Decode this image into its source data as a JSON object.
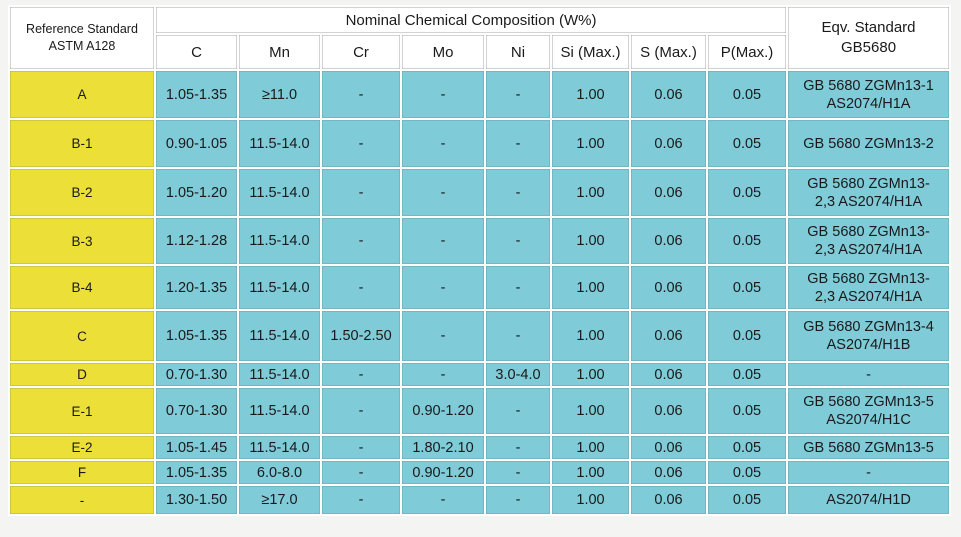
{
  "header": {
    "reference_line1": "Reference Standard",
    "reference_line2": "ASTM A128",
    "nominal": "Nominal Chemical Composition (W%)",
    "eqv_line1": "Eqv. Standard",
    "eqv_line2": "GB5680"
  },
  "columns": [
    "C",
    "Mn",
    "Cr",
    "Mo",
    "Ni",
    "Si (Max.)",
    "S (Max.)",
    "P(Max.)"
  ],
  "rows": [
    {
      "grade": "A",
      "c": "1.05-1.35",
      "mn": "≥11.0",
      "cr": "-",
      "mo": "-",
      "ni": "-",
      "si": "1.00",
      "s": "0.06",
      "p": "0.05",
      "eqv1": "GB 5680  ZGMn13-1",
      "eqv2": "AS2074/H1A"
    },
    {
      "grade": "B-1",
      "c": "0.90-1.05",
      "mn": "11.5-14.0",
      "cr": "-",
      "mo": "-",
      "ni": "-",
      "si": "1.00",
      "s": "0.06",
      "p": "0.05",
      "eqv1": "GB 5680 ZGMn13-2",
      "eqv2": ""
    },
    {
      "grade": "B-2",
      "c": "1.05-1.20",
      "mn": "11.5-14.0",
      "cr": "-",
      "mo": "-",
      "ni": "-",
      "si": "1.00",
      "s": "0.06",
      "p": "0.05",
      "eqv1": "GB 5680  ZGMn13-",
      "eqv2": "2,3 AS2074/H1A"
    },
    {
      "grade": "B-3",
      "c": "1.12-1.28",
      "mn": "11.5-14.0",
      "cr": "-",
      "mo": "-",
      "ni": "-",
      "si": "1.00",
      "s": "0.06",
      "p": "0.05",
      "eqv1": "GB 5680  ZGMn13-",
      "eqv2": "2,3 AS2074/H1A"
    },
    {
      "grade": "B-4",
      "c": "1.20-1.35",
      "mn": "11.5-14.0",
      "cr": "-",
      "mo": "-",
      "ni": "-",
      "si": "1.00",
      "s": "0.06",
      "p": "0.05",
      "eqv1": "GB 5680  ZGMn13-",
      "eqv2": "2,3 AS2074/H1A"
    },
    {
      "grade": "C",
      "c": "1.05-1.35",
      "mn": "11.5-14.0",
      "cr": "1.50-2.50",
      "mo": "-",
      "ni": "-",
      "si": "1.00",
      "s": "0.06",
      "p": "0.05",
      "eqv1": "GB 5680  ZGMn13-4",
      "eqv2": "AS2074/H1B"
    },
    {
      "grade": "D",
      "c": "0.70-1.30",
      "mn": "11.5-14.0",
      "cr": "-",
      "mo": "-",
      "ni": "3.0-4.0",
      "si": "1.00",
      "s": "0.06",
      "p": "0.05",
      "eqv1": "-",
      "eqv2": ""
    },
    {
      "grade": "E-1",
      "c": "0.70-1.30",
      "mn": "11.5-14.0",
      "cr": "-",
      "mo": "0.90-1.20",
      "ni": "-",
      "si": "1.00",
      "s": "0.06",
      "p": "0.05",
      "eqv1": "GB 5680  ZGMn13-5",
      "eqv2": "AS2074/H1C"
    },
    {
      "grade": "E-2",
      "c": "1.05-1.45",
      "mn": "11.5-14.0",
      "cr": "-",
      "mo": "1.80-2.10",
      "ni": "-",
      "si": "1.00",
      "s": "0.06",
      "p": "0.05",
      "eqv1": "GB 5680  ZGMn13-5",
      "eqv2": ""
    },
    {
      "grade": "F",
      "c": "1.05-1.35",
      "mn": "6.0-8.0",
      "cr": "-",
      "mo": "0.90-1.20",
      "ni": "-",
      "si": "1.00",
      "s": "0.06",
      "p": "0.05",
      "eqv1": "-",
      "eqv2": ""
    },
    {
      "grade": "-",
      "c": "1.30-1.50",
      "mn": "≥17.0",
      "cr": "-",
      "mo": "-",
      "ni": "-",
      "si": "1.00",
      "s": "0.06",
      "p": "0.05",
      "eqv1": "AS2074/H1D",
      "eqv2": ""
    }
  ]
}
